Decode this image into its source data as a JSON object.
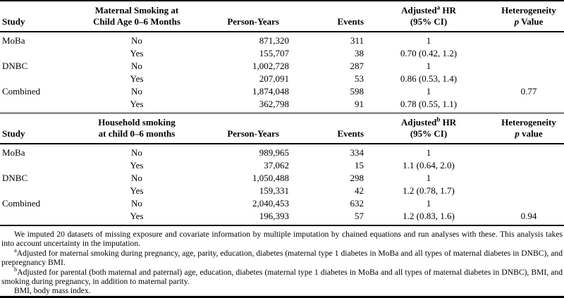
{
  "section1": {
    "headers": {
      "study": "Study",
      "exposure_line1": "Maternal Smoking at",
      "exposure_line2": "Child Age 0–6 Months",
      "person_years": "Person-Years",
      "events": "Events",
      "hr_pre": "Adjusted",
      "hr_sup": "a",
      "hr_post": " HR",
      "hr_line2": "(95% CI)",
      "het_line1": "Heterogeneity",
      "het_p": "p",
      "het_rest": " Value"
    },
    "rows": [
      {
        "study": "MoBa",
        "exposure": "No",
        "py": "871,320",
        "events": "311",
        "hr": "1",
        "p": ""
      },
      {
        "study": "",
        "exposure": "Yes",
        "py": "155,707",
        "events": "38",
        "hr": "0.70 (0.42, 1.2)",
        "p": ""
      },
      {
        "study": "DNBC",
        "exposure": "No",
        "py": "1,002,728",
        "events": "287",
        "hr": "1",
        "p": ""
      },
      {
        "study": "",
        "exposure": "Yes",
        "py": "207,091",
        "events": "53",
        "hr": "0.86 (0.53, 1.4)",
        "p": ""
      },
      {
        "study": "Combined",
        "exposure": "No",
        "py": "1,874,048",
        "events": "598",
        "hr": "1",
        "p": "0.77"
      },
      {
        "study": "",
        "exposure": "Yes",
        "py": "362,798",
        "events": "91",
        "hr": "0.78 (0.55, 1.1)",
        "p": ""
      }
    ]
  },
  "section2": {
    "headers": {
      "study": "Study",
      "exposure_line1": "Household smoking",
      "exposure_line2": "at child 0–6 months",
      "person_years": "Person-Years",
      "events": "Events",
      "hr_pre": "Adjusted",
      "hr_sup": "b",
      "hr_post": " HR",
      "hr_line2": "(95% CI)",
      "het_line1": "Heterogeneity",
      "het_p": "p",
      "het_rest": " value"
    },
    "rows": [
      {
        "study": "MoBa",
        "exposure": "No",
        "py": "989,965",
        "events": "334",
        "hr": "1",
        "p": ""
      },
      {
        "study": "",
        "exposure": "Yes",
        "py": "37,062",
        "events": "15",
        "hr": "1.1 (0.64, 2.0)",
        "p": ""
      },
      {
        "study": "DNBC",
        "exposure": "No",
        "py": "1,050,488",
        "events": "298",
        "hr": "1",
        "p": ""
      },
      {
        "study": "",
        "exposure": "Yes",
        "py": "159,331",
        "events": "42",
        "hr": "1.2 (0.78, 1.7)",
        "p": ""
      },
      {
        "study": "Combined",
        "exposure": "No",
        "py": "2,040,453",
        "events": "632",
        "hr": "1",
        "p": ""
      },
      {
        "study": "",
        "exposure": "Yes",
        "py": "196,393",
        "events": "57",
        "hr": "1.2 (0.83, 1.6)",
        "p": "0.94"
      }
    ]
  },
  "footnotes": [
    {
      "sup": "",
      "text": "We imputed 20 datasets of missing exposure and covariate information by multiple imputation by chained equations and run analyses with these. This analysis takes into account uncertainty in the imputation."
    },
    {
      "sup": "a",
      "text": "Adjusted for maternal smoking during pregnancy, age, parity, education, diabetes (maternal type 1 diabetes in MoBa and all types of maternal diabetes in DNBC), and prepregnancy BMI."
    },
    {
      "sup": "b",
      "text": "Adjusted for parental (both maternal and paternal) age, education, diabetes (maternal type 1 diabetes in MoBa and all types of maternal diabetes in DNBC), BMI, and smoking during pregnancy, in addition to maternal parity."
    },
    {
      "sup": "",
      "text": "BMI, body mass index."
    }
  ]
}
